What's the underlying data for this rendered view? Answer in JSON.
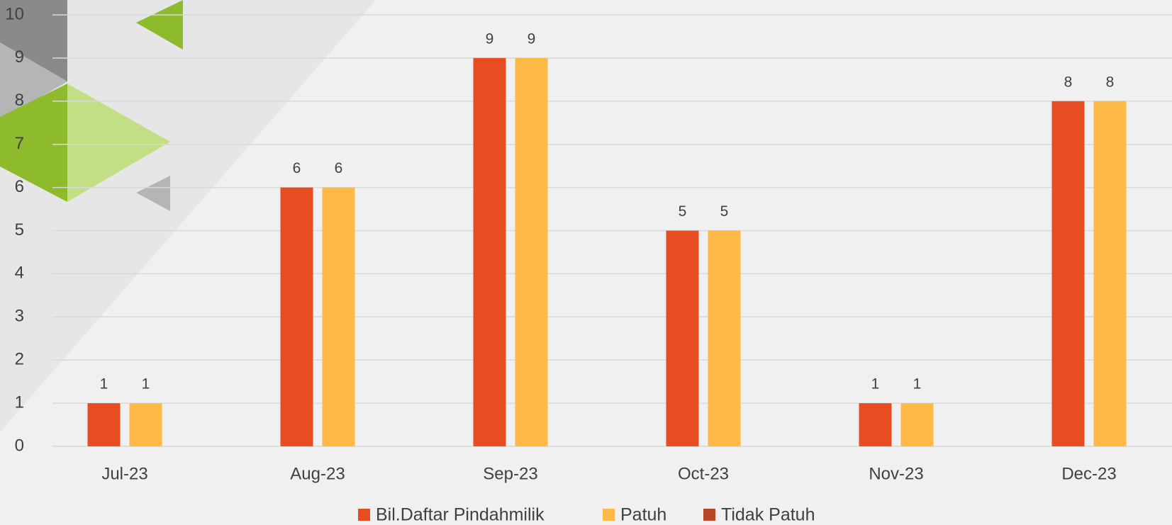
{
  "chart_data": {
    "type": "bar",
    "categories": [
      "Jul-23",
      "Aug-23",
      "Sep-23",
      "Oct-23",
      "Nov-23",
      "Dec-23"
    ],
    "series": [
      {
        "name": "Bil.Daftar Pindahmilik",
        "color": "#e84c22",
        "values": [
          1,
          6,
          9,
          5,
          1,
          8
        ]
      },
      {
        "name": "Patuh",
        "color": "#ffb946",
        "values": [
          1,
          6,
          9,
          5,
          1,
          8
        ]
      },
      {
        "name": "Tidak Patuh",
        "color": "#b7472a",
        "values": [
          null,
          null,
          null,
          null,
          null,
          null
        ]
      }
    ],
    "ylim": [
      0,
      10
    ],
    "yticks": [
      0,
      1,
      2,
      3,
      4,
      5,
      6,
      7,
      8,
      9,
      10
    ],
    "grid": true,
    "legend": "bottom"
  }
}
